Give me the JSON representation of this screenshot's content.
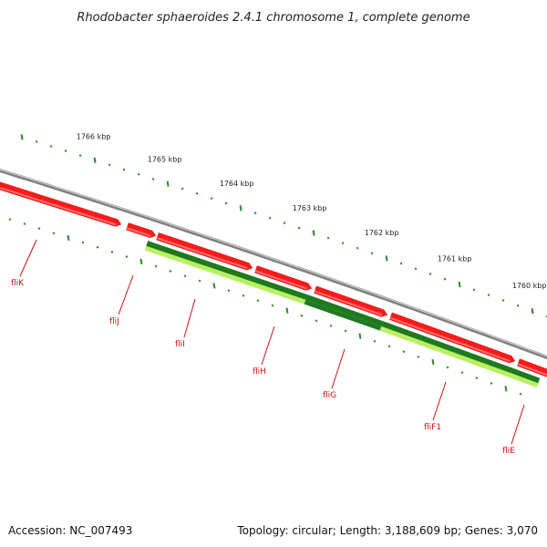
{
  "title": "Rhodobacter sphaeroides 2.4.1 chromosome 1, complete genome",
  "footer": {
    "accession": "Accession: NC_007493",
    "topology": "Topology: circular; Length: 3,188,609 bp; Genes: 3,070"
  },
  "colors": {
    "backbone": "#808080",
    "forward_gene": "#ff1a1a",
    "forward_gene_light": "#ff7070",
    "reverse_gene_dark": "#1f7a1f",
    "reverse_gene_light": "#b8f060",
    "tick": "#2a8a2a",
    "label_red": "#cc1111"
  },
  "kbp_labels": [
    "1766 kbp",
    "1765 kbp",
    "1764 kbp",
    "1763 kbp",
    "1762 kbp",
    "1761 kbp",
    "1760 kbp"
  ],
  "genes": [
    {
      "name": "fliK",
      "strand": "forward"
    },
    {
      "name": "fliJ",
      "strand": "forward"
    },
    {
      "name": "fliI",
      "strand": "forward"
    },
    {
      "name": "fliH",
      "strand": "forward"
    },
    {
      "name": "fliG",
      "strand": "forward"
    },
    {
      "name": "fliF1",
      "strand": "forward"
    },
    {
      "name": "fliE",
      "strand": "forward"
    }
  ]
}
